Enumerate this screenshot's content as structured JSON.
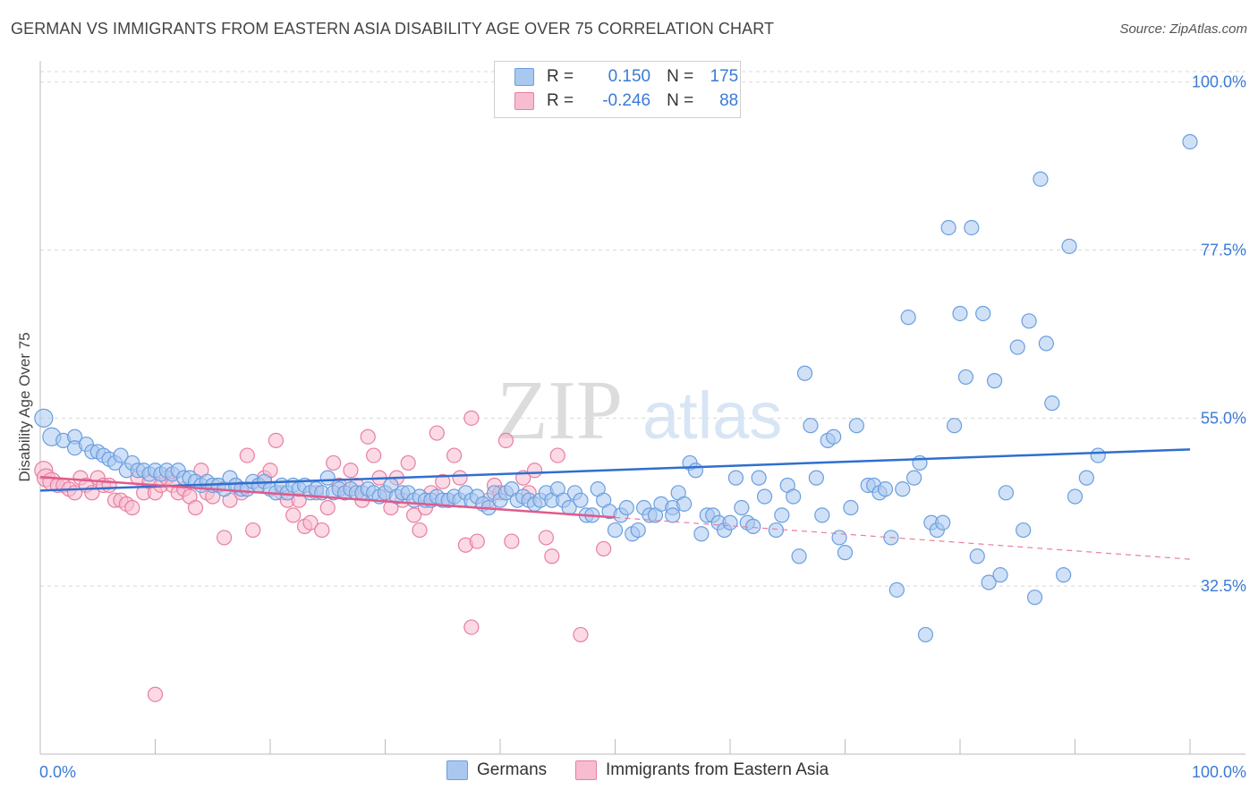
{
  "title": "GERMAN VS IMMIGRANTS FROM EASTERN ASIA DISABILITY AGE OVER 75 CORRELATION CHART",
  "source": "Source: ZipAtlas.com",
  "watermark": {
    "zip": "ZIP",
    "atlas": "atlas"
  },
  "legend": {
    "r_label": "R =",
    "n_label": "N =",
    "rows": [
      {
        "r": "0.150",
        "n": "175",
        "color": "#a9c8f0",
        "border": "#6a9ee0"
      },
      {
        "r": "-0.246",
        "n": "88",
        "color": "#f7bcd0",
        "border": "#e87ea0"
      }
    ]
  },
  "bottom_legend": [
    {
      "label": "Germans",
      "color": "#a9c8f0",
      "border": "#6a9ee0"
    },
    {
      "label": "Immigrants from Eastern Asia",
      "color": "#f7bcd0",
      "border": "#e87ea0"
    }
  ],
  "chart_data": {
    "type": "scatter",
    "title": "GERMAN VS IMMIGRANTS FROM EASTERN ASIA DISABILITY AGE OVER 75 CORRELATION CHART",
    "xlabel": "",
    "ylabel": "Disability Age Over 75",
    "xlim": [
      0,
      100
    ],
    "ylim": [
      10,
      102
    ],
    "x_tick_labels": [
      "0.0%",
      "100.0%"
    ],
    "y_ticks": [
      32.5,
      55.0,
      77.5,
      100.0
    ],
    "y_tick_labels": [
      "32.5%",
      "55.0%",
      "77.5%",
      "100.0%"
    ],
    "grid": "horizontal dashed",
    "legend_position": "top-center",
    "series": [
      {
        "name": "Germans",
        "color": "#6a9ee0",
        "fill": "#a9c8f0",
        "trend": {
          "x": [
            0,
            100
          ],
          "y": [
            45.3,
            50.8
          ],
          "style": "solid"
        },
        "points": [
          [
            0.3,
            55
          ],
          [
            1,
            52.5
          ],
          [
            2,
            52
          ],
          [
            3,
            52.5
          ],
          [
            3,
            51
          ],
          [
            4,
            51.5
          ],
          [
            4.5,
            50.5
          ],
          [
            5,
            50.5
          ],
          [
            5.5,
            50
          ],
          [
            6,
            49.5
          ],
          [
            6.5,
            49
          ],
          [
            7,
            50
          ],
          [
            7.5,
            48
          ],
          [
            8,
            49
          ],
          [
            8.5,
            48
          ],
          [
            9,
            48
          ],
          [
            9.5,
            47.5
          ],
          [
            10,
            48
          ],
          [
            10.5,
            47.5
          ],
          [
            11,
            48
          ],
          [
            11.5,
            47.5
          ],
          [
            12,
            48
          ],
          [
            12.5,
            47
          ],
          [
            13,
            47
          ],
          [
            13.5,
            46.5
          ],
          [
            14,
            46
          ],
          [
            14.5,
            46.5
          ],
          [
            15,
            46
          ],
          [
            15.5,
            46
          ],
          [
            16,
            45.5
          ],
          [
            16.5,
            47
          ],
          [
            17,
            46
          ],
          [
            17.5,
            45.5
          ],
          [
            18,
            45.5
          ],
          [
            18.5,
            46.5
          ],
          [
            19,
            46
          ],
          [
            19.5,
            46.5
          ],
          [
            20,
            45.5
          ],
          [
            20.5,
            45
          ],
          [
            21,
            46
          ],
          [
            21.5,
            45
          ],
          [
            22,
            46
          ],
          [
            22.5,
            45.5
          ],
          [
            23,
            46
          ],
          [
            23.5,
            45
          ],
          [
            24,
            45.5
          ],
          [
            24.5,
            45
          ],
          [
            25,
            47
          ],
          [
            25.5,
            45
          ],
          [
            26,
            45.5
          ],
          [
            26.5,
            45
          ],
          [
            27,
            45.5
          ],
          [
            27.5,
            45
          ],
          [
            28,
            45
          ],
          [
            28.5,
            45.5
          ],
          [
            29,
            45
          ],
          [
            29.5,
            44.5
          ],
          [
            30,
            45
          ],
          [
            30.5,
            46
          ],
          [
            31,
            44.5
          ],
          [
            31.5,
            45
          ],
          [
            32,
            45
          ],
          [
            32.5,
            44
          ],
          [
            33,
            44.5
          ],
          [
            33.5,
            44
          ],
          [
            34,
            44
          ],
          [
            34.5,
            44.5
          ],
          [
            35,
            44
          ],
          [
            35.5,
            44
          ],
          [
            36,
            44.5
          ],
          [
            36.5,
            44
          ],
          [
            37,
            45
          ],
          [
            37.5,
            44
          ],
          [
            38,
            44.5
          ],
          [
            38.5,
            43.5
          ],
          [
            39,
            43
          ],
          [
            39.5,
            45
          ],
          [
            40,
            44
          ],
          [
            40.5,
            45
          ],
          [
            41,
            45.5
          ],
          [
            41.5,
            44
          ],
          [
            42,
            44.5
          ],
          [
            42.5,
            44
          ],
          [
            43,
            43.5
          ],
          [
            43.5,
            44
          ],
          [
            44,
            45
          ],
          [
            44.5,
            44
          ],
          [
            45,
            45.5
          ],
          [
            45.5,
            44
          ],
          [
            46,
            43
          ],
          [
            46.5,
            45
          ],
          [
            47,
            44
          ],
          [
            47.5,
            42
          ],
          [
            48,
            42
          ],
          [
            48.5,
            45.5
          ],
          [
            49,
            44
          ],
          [
            49.5,
            42.5
          ],
          [
            50,
            40
          ],
          [
            50.5,
            42
          ],
          [
            51,
            43
          ],
          [
            51.5,
            39.5
          ],
          [
            52,
            40
          ],
          [
            52.5,
            43
          ],
          [
            53,
            42
          ],
          [
            53.5,
            42
          ],
          [
            54,
            43.5
          ],
          [
            55,
            43
          ],
          [
            55,
            42
          ],
          [
            55.5,
            45
          ],
          [
            56,
            43.5
          ],
          [
            56.5,
            49
          ],
          [
            57,
            48
          ],
          [
            57.5,
            39.5
          ],
          [
            58,
            42
          ],
          [
            58.5,
            42
          ],
          [
            59,
            41
          ],
          [
            59.5,
            40
          ],
          [
            60,
            41
          ],
          [
            60.5,
            47
          ],
          [
            61,
            43
          ],
          [
            61.5,
            41
          ],
          [
            62,
            40.5
          ],
          [
            62.5,
            47
          ],
          [
            63,
            44.5
          ],
          [
            64,
            40
          ],
          [
            64.5,
            42
          ],
          [
            65,
            46
          ],
          [
            65.5,
            44.5
          ],
          [
            66,
            36.5
          ],
          [
            66.5,
            61
          ],
          [
            67,
            54
          ],
          [
            67.5,
            47
          ],
          [
            68,
            42
          ],
          [
            68.5,
            52
          ],
          [
            69,
            52.5
          ],
          [
            69.5,
            39
          ],
          [
            70,
            37
          ],
          [
            70.5,
            43
          ],
          [
            71,
            54
          ],
          [
            72,
            46
          ],
          [
            72.5,
            46
          ],
          [
            73,
            45
          ],
          [
            73.5,
            45.5
          ],
          [
            74,
            39
          ],
          [
            74.5,
            32
          ],
          [
            75,
            45.5
          ],
          [
            75.5,
            68.5
          ],
          [
            76,
            47
          ],
          [
            76.5,
            49
          ],
          [
            77,
            26
          ],
          [
            77.5,
            41
          ],
          [
            78,
            40
          ],
          [
            78.5,
            41
          ],
          [
            79,
            80.5
          ],
          [
            79.5,
            54
          ],
          [
            80,
            69
          ],
          [
            80.5,
            60.5
          ],
          [
            81,
            80.5
          ],
          [
            81.5,
            36.5
          ],
          [
            82,
            69
          ],
          [
            82.5,
            33
          ],
          [
            83,
            60
          ],
          [
            83.5,
            34
          ],
          [
            84,
            45
          ],
          [
            85,
            64.5
          ],
          [
            85.5,
            40
          ],
          [
            86,
            68
          ],
          [
            86.5,
            31
          ],
          [
            87,
            87
          ],
          [
            87.5,
            65
          ],
          [
            88,
            57
          ],
          [
            89,
            34
          ],
          [
            89.5,
            78
          ],
          [
            90,
            44.5
          ],
          [
            91,
            47
          ],
          [
            92,
            50
          ],
          [
            100,
            92
          ]
        ]
      },
      {
        "name": "Immigrants from Eastern Asia",
        "color": "#e87ea0",
        "fill": "#f7bcd0",
        "trend": {
          "x": [
            0,
            50,
            100
          ],
          "y": [
            47.1,
            41.7,
            36.1
          ],
          "style": "solid-then-dashed",
          "solid_until": 50
        },
        "points": [
          [
            0.3,
            48
          ],
          [
            0.5,
            47
          ],
          [
            1,
            46.5
          ],
          [
            1.5,
            46
          ],
          [
            2,
            46
          ],
          [
            2.5,
            45.5
          ],
          [
            3,
            45
          ],
          [
            3.5,
            47
          ],
          [
            4,
            46
          ],
          [
            4.5,
            45
          ],
          [
            5,
            47
          ],
          [
            5.5,
            46
          ],
          [
            6,
            46
          ],
          [
            6.5,
            44
          ],
          [
            7,
            44
          ],
          [
            7.5,
            43.5
          ],
          [
            8,
            43
          ],
          [
            8.5,
            47
          ],
          [
            9,
            45
          ],
          [
            9.5,
            46.5
          ],
          [
            10,
            45
          ],
          [
            10.5,
            46
          ],
          [
            11,
            47
          ],
          [
            11.5,
            46
          ],
          [
            12,
            45
          ],
          [
            12.5,
            45.5
          ],
          [
            13,
            44.5
          ],
          [
            13.5,
            43
          ],
          [
            14,
            48
          ],
          [
            14.5,
            45
          ],
          [
            15,
            44.5
          ],
          [
            15.5,
            46
          ],
          [
            16,
            39
          ],
          [
            16.5,
            44
          ],
          [
            17,
            46
          ],
          [
            17.5,
            45
          ],
          [
            18,
            50
          ],
          [
            18.5,
            40
          ],
          [
            19,
            46
          ],
          [
            19.5,
            47
          ],
          [
            20,
            48
          ],
          [
            20.5,
            52
          ],
          [
            21,
            45
          ],
          [
            21.5,
            44
          ],
          [
            22,
            42
          ],
          [
            22.5,
            44
          ],
          [
            23,
            40.5
          ],
          [
            23.5,
            41
          ],
          [
            24,
            45
          ],
          [
            24.5,
            40
          ],
          [
            25,
            43
          ],
          [
            25.5,
            49
          ],
          [
            26,
            46
          ],
          [
            26.5,
            45
          ],
          [
            27,
            48
          ],
          [
            27.5,
            46
          ],
          [
            28,
            44
          ],
          [
            28.5,
            52.5
          ],
          [
            29,
            50
          ],
          [
            29.5,
            47
          ],
          [
            30,
            45
          ],
          [
            30.5,
            43
          ],
          [
            31,
            47
          ],
          [
            31.5,
            44
          ],
          [
            32,
            49
          ],
          [
            32.5,
            42
          ],
          [
            33,
            40
          ],
          [
            33.5,
            43
          ],
          [
            34,
            45
          ],
          [
            34.5,
            53
          ],
          [
            35,
            46.5
          ],
          [
            35.5,
            44
          ],
          [
            36,
            50
          ],
          [
            36.5,
            47
          ],
          [
            37,
            38
          ],
          [
            37.5,
            55
          ],
          [
            38,
            38.5
          ],
          [
            39,
            44
          ],
          [
            39.5,
            46
          ],
          [
            40,
            45
          ],
          [
            40.5,
            52
          ],
          [
            41,
            38.5
          ],
          [
            42,
            47
          ],
          [
            42.5,
            45
          ],
          [
            43,
            48
          ],
          [
            44,
            39
          ],
          [
            44.5,
            36.5
          ],
          [
            45,
            50
          ],
          [
            47,
            26
          ],
          [
            37.5,
            27
          ],
          [
            49,
            37.5
          ],
          [
            10,
            18
          ]
        ]
      }
    ]
  }
}
